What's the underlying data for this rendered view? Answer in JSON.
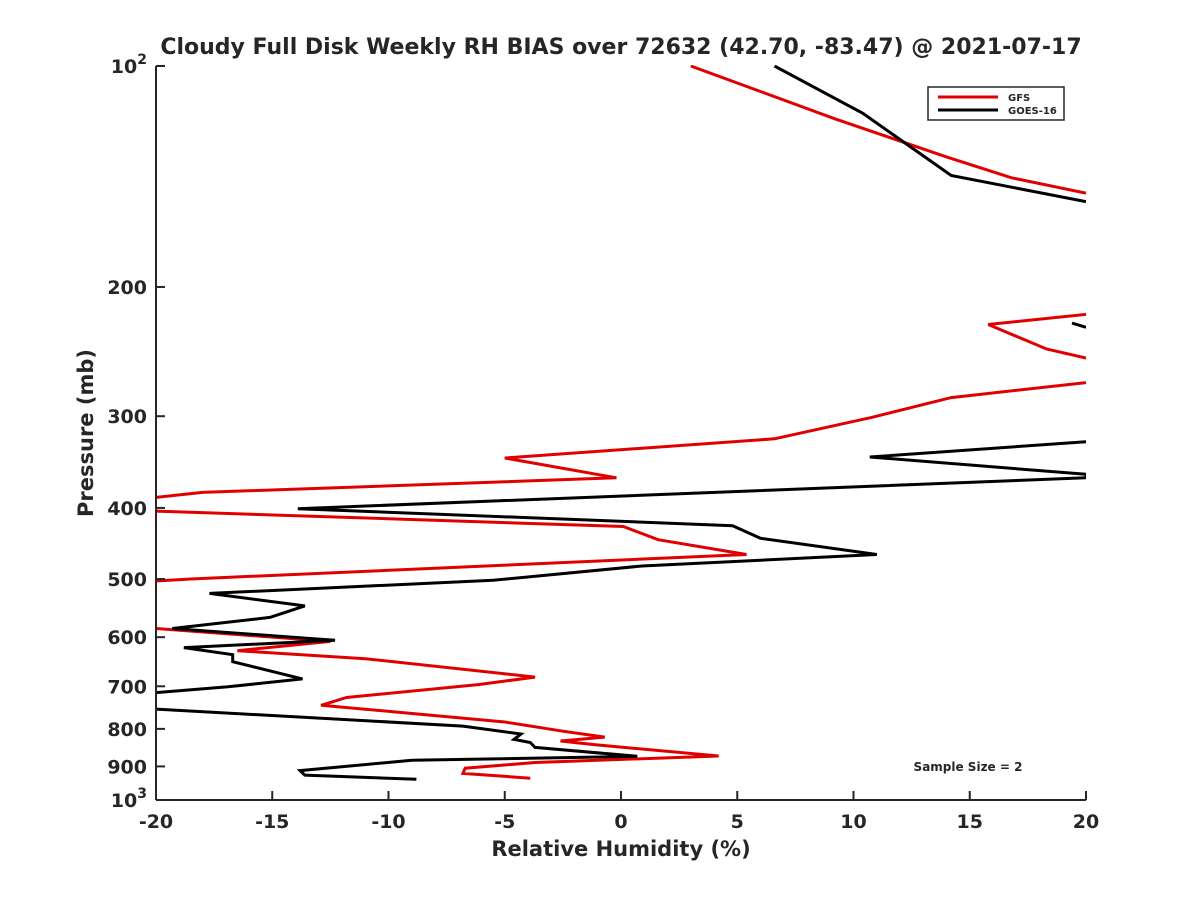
{
  "chart_data": {
    "type": "line",
    "title": "Cloudy Full Disk Weekly RH BIAS over 72632 (42.70, -83.47) @ 2021-07-17",
    "xlabel": "Relative Humidity (%)",
    "ylabel": "Pressure (mb)",
    "xlim": [
      -20,
      20
    ],
    "ylim": [
      1000,
      100
    ],
    "y_scale": "log",
    "y_reversed": true,
    "grid": false,
    "legend_position": "top-right",
    "x_ticks": [
      "-20",
      "-15",
      "-10",
      "-5",
      "0",
      "5",
      "10",
      "15",
      "20"
    ],
    "y_ticks": [
      {
        "value": 100,
        "base": "10",
        "exp": "2"
      },
      {
        "value": 200,
        "label": "200"
      },
      {
        "value": 300,
        "label": "300"
      },
      {
        "value": 400,
        "label": "400"
      },
      {
        "value": 500,
        "label": "500"
      },
      {
        "value": 600,
        "label": "600"
      },
      {
        "value": 700,
        "label": "700"
      },
      {
        "value": 800,
        "label": "800"
      },
      {
        "value": 900,
        "label": "900"
      },
      {
        "value": 1000,
        "base": "10",
        "exp": "3"
      }
    ],
    "annotation": "Sample Size = 2",
    "series": [
      {
        "name": "GFS",
        "color": "#e00000",
        "points": [
          [
            3.0,
            100
          ],
          [
            9.2,
            118
          ],
          [
            14.0,
            133
          ],
          [
            16.8,
            142
          ],
          [
            20.0,
            149
          ],
          [
            null,
            null
          ],
          [
            20.0,
            218
          ],
          [
            15.8,
            225
          ],
          [
            18.3,
            243
          ],
          [
            20.0,
            250
          ],
          [
            null,
            null
          ],
          [
            20.0,
            270
          ],
          [
            14.2,
            283
          ],
          [
            10.8,
            301
          ],
          [
            6.6,
            322
          ],
          [
            -5.0,
            342
          ],
          [
            -0.2,
            364
          ],
          [
            -18.0,
            381
          ],
          [
            -20.0,
            387
          ],
          [
            null,
            null
          ],
          [
            -20.0,
            404
          ],
          [
            0.1,
            424
          ],
          [
            1.6,
            442
          ],
          [
            5.4,
            463
          ],
          [
            -18.5,
            500
          ],
          [
            -20.0,
            503
          ],
          [
            null,
            null
          ],
          [
            -20.0,
            584
          ],
          [
            -12.5,
            608
          ],
          [
            -16.5,
            626
          ],
          [
            -11.0,
            642
          ],
          [
            -3.7,
            680
          ],
          [
            -6.1,
            696
          ],
          [
            -11.8,
            725
          ],
          [
            -12.9,
            743
          ],
          [
            -9.8,
            758
          ],
          [
            -5.0,
            783
          ],
          [
            -2.5,
            806
          ],
          [
            -0.7,
            821
          ],
          [
            -2.6,
            831
          ],
          [
            -1.1,
            841
          ],
          [
            4.2,
            871
          ],
          [
            -3.7,
            889
          ],
          [
            -6.7,
            905
          ],
          [
            -6.8,
            920
          ],
          [
            -3.9,
            934
          ]
        ]
      },
      {
        "name": "GOES-16",
        "color": "#000000",
        "points": [
          [
            6.6,
            100
          ],
          [
            10.4,
            116
          ],
          [
            14.2,
            141
          ],
          [
            20.0,
            153
          ],
          [
            null,
            null
          ],
          [
            19.4,
            224
          ],
          [
            20.0,
            227
          ],
          [
            null,
            null
          ],
          [
            20.0,
            325
          ],
          [
            10.7,
            341
          ],
          [
            20.0,
            360
          ],
          [
            20.0,
            364
          ],
          [
            -13.9,
            401
          ],
          [
            4.8,
            423
          ],
          [
            6.0,
            440
          ],
          [
            11.0,
            463
          ],
          [
            0.9,
            480
          ],
          [
            -5.5,
            502
          ],
          [
            -17.7,
            523
          ],
          [
            -13.6,
            544
          ],
          [
            -15.1,
            564
          ],
          [
            -19.3,
            584
          ],
          [
            -12.3,
            606
          ],
          [
            -18.8,
            620
          ],
          [
            -16.7,
            634
          ],
          [
            -16.7,
            648
          ],
          [
            -13.7,
            684
          ],
          [
            -16.9,
            701
          ],
          [
            -20.0,
            714
          ],
          [
            null,
            null
          ],
          [
            -20.0,
            752
          ],
          [
            -6.8,
            793
          ],
          [
            -4.3,
            813
          ],
          [
            -4.6,
            827
          ],
          [
            -3.9,
            835
          ],
          [
            -3.7,
            848
          ],
          [
            0.7,
            872
          ],
          [
            -9.0,
            883
          ],
          [
            -13.8,
            912
          ],
          [
            -13.6,
            925
          ],
          [
            -8.8,
            937
          ]
        ]
      }
    ]
  }
}
